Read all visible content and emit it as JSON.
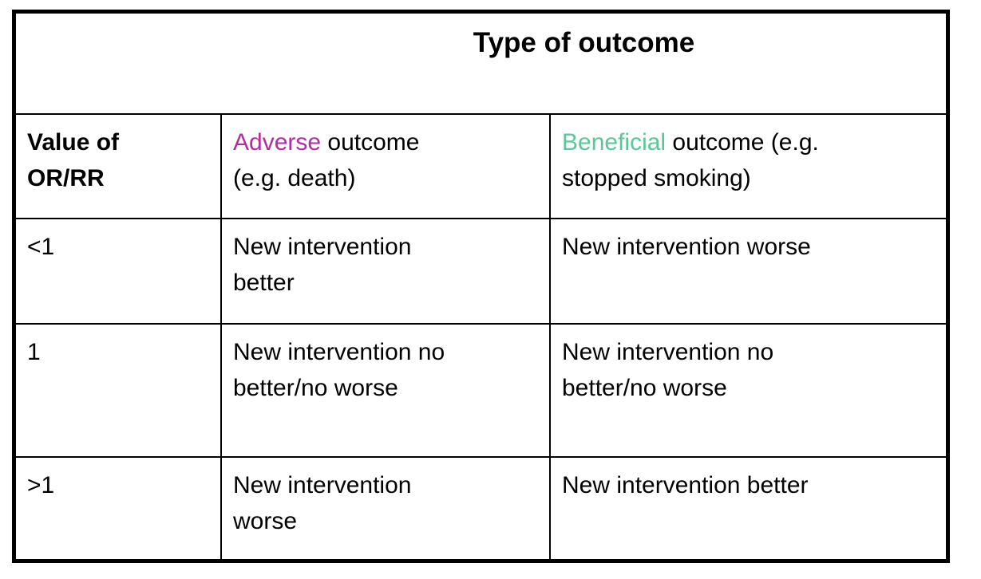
{
  "colors": {
    "adverse_highlight": "#B22DA0",
    "beneficial_highlight": "#5AC896",
    "border": "#000000",
    "background": "#FFFFFF",
    "text": "#000000"
  },
  "table": {
    "title": "Type of outcome",
    "header": {
      "value_col": "Value of\nOR/RR",
      "adverse_col": {
        "highlight": "Adverse",
        "rest": " outcome\n(e.g. death)"
      },
      "beneficial_col": {
        "highlight": "Beneficial",
        "rest": " outcome (e.g.\nstopped smoking)"
      }
    },
    "rows": [
      {
        "value": "<1",
        "adverse": "New intervention\nbetter",
        "beneficial": "New intervention worse"
      },
      {
        "value": "1",
        "adverse": "New intervention no\nbetter/no worse",
        "beneficial": "New intervention no\nbetter/no worse"
      },
      {
        "value": ">1",
        "adverse": "New intervention\nworse",
        "beneficial": "New intervention better"
      }
    ]
  }
}
